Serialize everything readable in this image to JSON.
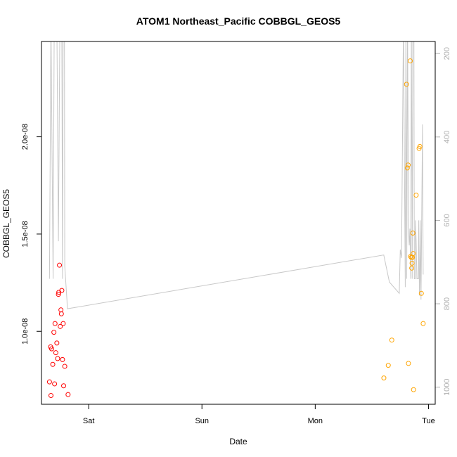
{
  "chart_data": {
    "type": "scatter",
    "title": "ATOM1 Northeast_Pacific COBBGL_GEOS5",
    "xlabel": "Date",
    "ylabel": "COBBGL_GEOS5",
    "x_unit": "days since Friday 00:00",
    "xlim": [
      0.5834,
      4.0593
    ],
    "ylim": [
      6.25e-09,
      2.49e-08
    ],
    "x_ticks": [
      {
        "value": 1,
        "label": "Sat"
      },
      {
        "value": 2,
        "label": "Sun"
      },
      {
        "value": 3,
        "label": "Mon"
      },
      {
        "value": 4,
        "label": "Tue"
      }
    ],
    "y_ticks": [
      {
        "value": 1e-08,
        "label": "1.0e-08"
      },
      {
        "value": 1.5e-08,
        "label": "1.5e-08"
      },
      {
        "value": 2e-08,
        "label": "2.0e-08"
      }
    ],
    "right_axis": {
      "label": "",
      "reversed": true,
      "lim": [
        171,
        1041
      ],
      "ticks": [
        200,
        400,
        600,
        800,
        1000
      ],
      "color": "#b0b0b0"
    },
    "series": [
      {
        "color": "#ff0000",
        "marker": "open-circle",
        "points": [
          [
            0.654,
            7.4e-09
          ],
          [
            0.664,
            9.2e-09
          ],
          [
            0.667,
            6.7e-09
          ],
          [
            0.673,
            9.1e-09
          ],
          [
            0.683,
            8.3e-09
          ],
          [
            0.693,
            9.95e-09
          ],
          [
            0.699,
            7.3e-09
          ],
          [
            0.703,
            1.04e-08
          ],
          [
            0.71,
            8.9e-09
          ],
          [
            0.719,
            9.4e-09
          ],
          [
            0.726,
            8.6e-09
          ],
          [
            0.733,
            1.19e-08
          ],
          [
            0.736,
            1.2e-08
          ],
          [
            0.742,
            1.34e-08
          ],
          [
            0.749,
            1.025e-08
          ],
          [
            0.755,
            1.11e-08
          ],
          [
            0.759,
            1.09e-08
          ],
          [
            0.763,
            1.21e-08
          ],
          [
            0.769,
            8.55e-09
          ],
          [
            0.775,
            1.04e-08
          ],
          [
            0.779,
            7.2e-09
          ],
          [
            0.789,
            8.2e-09
          ],
          [
            0.818,
            6.75e-09
          ]
        ]
      },
      {
        "color": "#ffa500",
        "marker": "open-circle",
        "points": [
          [
            3.606,
            7.6e-09
          ],
          [
            3.645,
            8.25e-09
          ],
          [
            3.676,
            9.55e-09
          ],
          [
            3.806,
            2.27e-08
          ],
          [
            3.813,
            1.84e-08
          ],
          [
            3.82,
            1.855e-08
          ],
          [
            3.823,
            8.35e-09
          ],
          [
            3.839,
            2.39e-08
          ],
          [
            3.842,
            1.385e-08
          ],
          [
            3.849,
            1.38e-08
          ],
          [
            3.852,
            1.325e-08
          ],
          [
            3.855,
            1.35e-08
          ],
          [
            3.858,
            1.38e-08
          ],
          [
            3.862,
            1.505e-08
          ],
          [
            3.865,
            1.4e-08
          ],
          [
            3.868,
            7e-09
          ],
          [
            3.891,
            1.7e-08
          ],
          [
            3.917,
            1.94e-08
          ],
          [
            3.924,
            1.95e-08
          ],
          [
            3.937,
            1.195e-08
          ],
          [
            3.953,
            1.04e-08
          ]
        ]
      }
    ],
    "line_series": {
      "color": "#c8c8c8",
      "axis": "right",
      "points": [
        [
          0.654,
          740
        ],
        [
          0.667,
          120
        ],
        [
          0.686,
          740
        ],
        [
          0.696,
          120
        ],
        [
          0.704,
          120
        ],
        [
          0.719,
          120
        ],
        [
          0.733,
          650
        ],
        [
          0.746,
          120
        ],
        [
          0.763,
          120
        ],
        [
          0.769,
          740
        ],
        [
          0.775,
          120
        ],
        [
          0.786,
          120
        ],
        [
          0.789,
          710
        ],
        [
          0.808,
          790
        ],
        [
          0.812,
          812
        ],
        [
          3.605,
          683
        ],
        [
          3.655,
          748
        ],
        [
          3.742,
          775
        ],
        [
          3.751,
          670
        ],
        [
          3.762,
          690
        ],
        [
          3.779,
          120
        ],
        [
          3.795,
          760
        ],
        [
          3.801,
          120
        ],
        [
          3.808,
          740
        ],
        [
          3.815,
          120
        ],
        [
          3.824,
          620
        ],
        [
          3.83,
          660
        ],
        [
          3.836,
          620
        ],
        [
          3.843,
          740
        ],
        [
          3.849,
          120
        ],
        [
          3.856,
          740
        ],
        [
          3.862,
          120
        ],
        [
          3.868,
          120
        ],
        [
          3.871,
          120
        ],
        [
          3.875,
          740
        ],
        [
          3.882,
          740
        ],
        [
          3.885,
          600
        ],
        [
          3.891,
          650
        ],
        [
          3.898,
          740
        ],
        [
          3.911,
          740
        ],
        [
          3.914,
          600
        ],
        [
          3.92,
          780
        ],
        [
          3.924,
          740
        ],
        [
          3.927,
          600
        ],
        [
          3.934,
          790
        ],
        [
          3.947,
          370
        ],
        [
          3.953,
          730
        ]
      ]
    }
  }
}
